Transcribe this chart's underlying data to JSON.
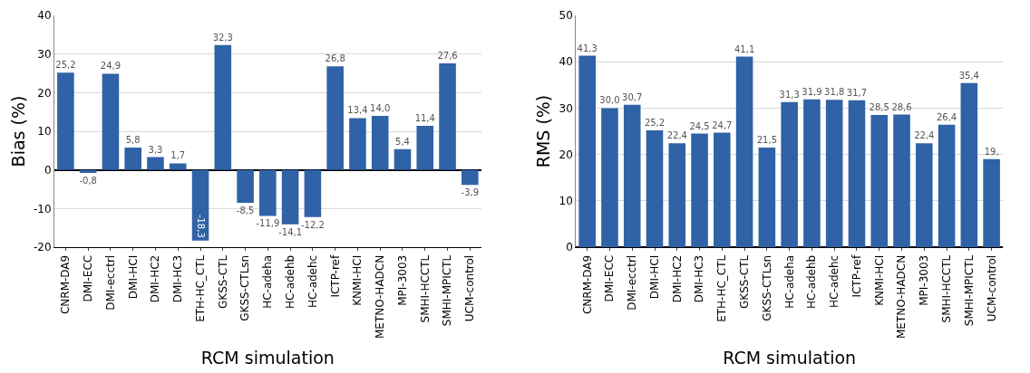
{
  "chart_data": [
    {
      "type": "bar",
      "xlabel": "RCM simulation",
      "ylabel": "Bias (%)",
      "categories": [
        "CNRM-DA9",
        "DMI-ECC",
        "DMI-ecctrl",
        "DMI-HCI",
        "DMI-HC2",
        "DMI-HC3",
        "ETH-HC_CTL",
        "GKSS-CTL",
        "GKSS-CTLsn",
        "HC-adeha",
        "HC-adehb",
        "HC-adehc",
        "ICTP-ref",
        "KNMI-HCI",
        "METNO-HADCN",
        "MPI-3003",
        "SMHI-HCCTL",
        "SMHI-MPICTL",
        "UCM-control"
      ],
      "values": [
        25.2,
        -0.8,
        24.9,
        5.8,
        3.3,
        1.7,
        -18.3,
        32.3,
        -8.5,
        -11.9,
        -14.1,
        -12.2,
        26.8,
        13.4,
        14.0,
        5.4,
        11.4,
        27.6,
        -3.9
      ],
      "value_labels": [
        "25,2",
        "-0,8",
        "24,9",
        "5,8",
        "3,3",
        "1,7",
        "-18,3",
        "32,3",
        "-8,5",
        "-11,9",
        "-14,1",
        "-12,2",
        "26,8",
        "13,4",
        "14,0",
        "5,4",
        "11,4",
        "27,6",
        "-3,9"
      ],
      "color": "#2f62a6",
      "ylim": [
        -20,
        40
      ],
      "yticks": [
        -20,
        -10,
        0,
        10,
        20,
        30,
        40
      ],
      "grid": "y"
    },
    {
      "type": "bar",
      "xlabel": "RCM simulation",
      "ylabel": "RMS (%)",
      "categories": [
        "CNRM-DA9",
        "DMI-ECC",
        "DMI-ecctrl",
        "DMI-HCI",
        "DMI-HC2",
        "DMI-HC3",
        "ETH-HC_CTL",
        "GKSS-CTL",
        "GKSS-CTLsn",
        "HC-adeha",
        "HC-adehb",
        "HC-adehc",
        "ICTP-ref",
        "KNMI-HCI",
        "METNO-HADCN",
        "MPI-3003",
        "SMHI-HCCTL",
        "SMHI-MPICTL",
        "UCM-control"
      ],
      "values": [
        41.3,
        30.0,
        30.7,
        25.2,
        22.4,
        24.5,
        24.7,
        41.1,
        21.5,
        31.3,
        31.9,
        31.8,
        31.7,
        28.5,
        28.6,
        22.4,
        26.4,
        35.4,
        19
      ],
      "value_labels": [
        "41,3",
        "30,0",
        "30,7",
        "25,2",
        "22,4",
        "24,5",
        "24,7",
        "41,1",
        "21,5",
        "31,3",
        "31,9",
        "31,8",
        "31,7",
        "28,5",
        "28,6",
        "22,4",
        "26,4",
        "35,4",
        "19,"
      ],
      "color": "#2f62a6",
      "ylim": [
        0,
        50
      ],
      "yticks": [
        0,
        10,
        20,
        30,
        40,
        50
      ],
      "grid": "y"
    }
  ]
}
